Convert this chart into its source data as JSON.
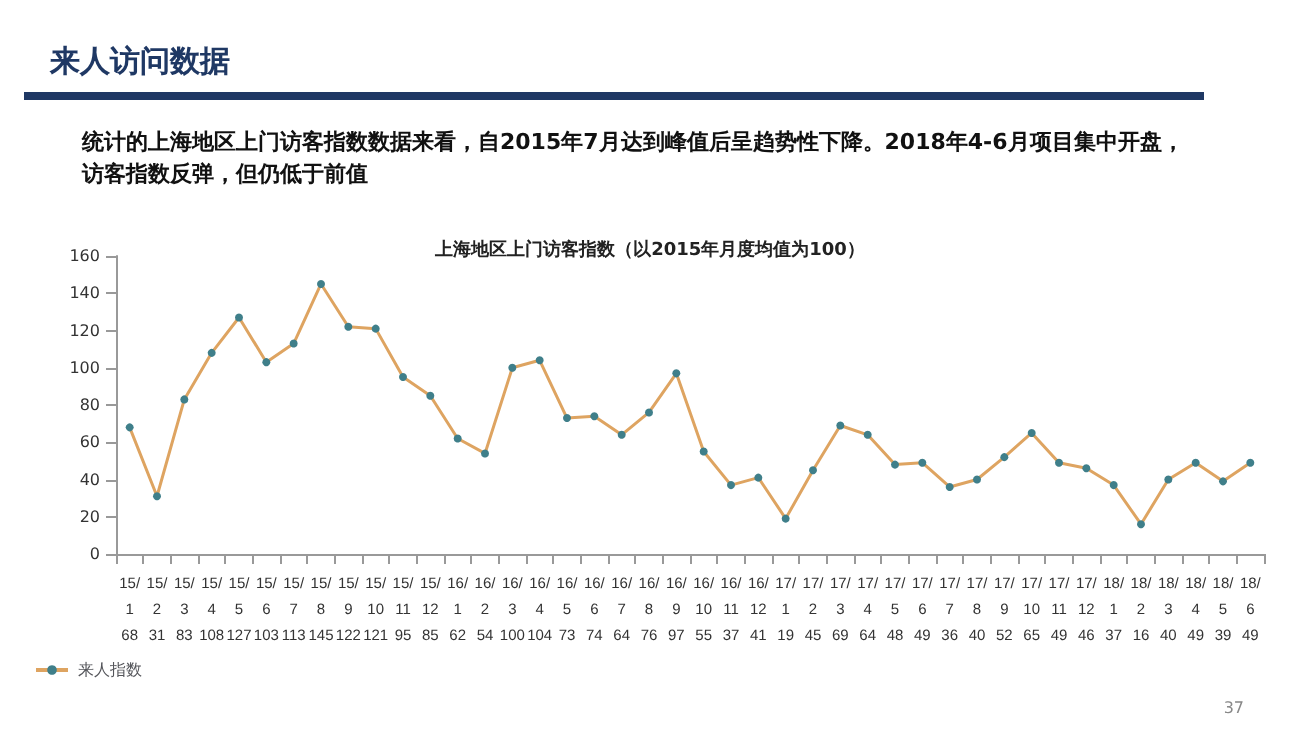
{
  "chart_data": {
    "type": "line",
    "title": "上海地区上门访客指数（以2015年月度均值为100）",
    "subtitle": "统计的上海地区上门访客指数数据来看，自2015年7月达到峰值后呈趋势性下降。2018年4-6月项目集中开盘，访客指数反弹，但仍低于前值",
    "annotations": [
      "来人访问数据",
      "37"
    ],
    "categories": [
      "15/1",
      "15/2",
      "15/3",
      "15/4",
      "15/5",
      "15/6",
      "15/7",
      "15/8",
      "15/9",
      "15/10",
      "15/11",
      "15/12",
      "16/1",
      "16/2",
      "16/3",
      "16/4",
      "16/5",
      "16/6",
      "16/7",
      "16/8",
      "16/9",
      "16/10",
      "16/11",
      "16/12",
      "17/1",
      "17/2",
      "17/3",
      "17/4",
      "17/5",
      "17/6",
      "17/7",
      "17/8",
      "17/9",
      "17/10",
      "17/11",
      "17/12",
      "18/1",
      "18/2",
      "18/3",
      "18/4",
      "18/5",
      "18/6"
    ],
    "series": [
      {
        "name": "来人指数",
        "color": "#dea461",
        "values": [
          68,
          31,
          83,
          108,
          127,
          103,
          113,
          145,
          122,
          121,
          95,
          85,
          62,
          54,
          100,
          104,
          73,
          74,
          64,
          76,
          97,
          55,
          37,
          41,
          19,
          45,
          69,
          64,
          48,
          49,
          36,
          40,
          52,
          65,
          49,
          46,
          37,
          16,
          40,
          49,
          39,
          49
        ]
      }
    ],
    "ylim": [
      0,
      160
    ],
    "yticks": [
      0,
      20,
      40,
      60,
      80,
      100,
      120,
      140,
      160
    ],
    "data_labels": true,
    "legend": "bottom left",
    "marker": "circle",
    "grid": false
  }
}
